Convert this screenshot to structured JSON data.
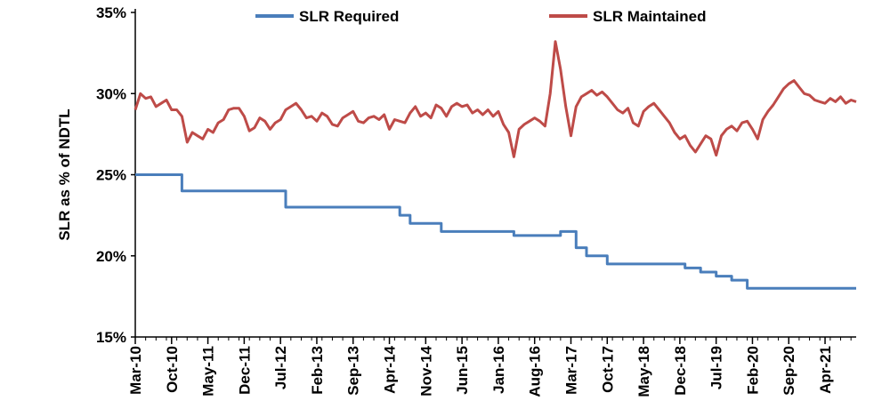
{
  "chart_data": {
    "type": "line",
    "title": "",
    "xlabel": "",
    "ylabel": "SLR as % of NDTL",
    "ylim": [
      15,
      35
    ],
    "yticks": [
      "15%",
      "20%",
      "25%",
      "30%",
      "35%"
    ],
    "x_range": [
      "2010-03",
      "2021-10"
    ],
    "xticks": [
      "Mar-10",
      "Oct-10",
      "May-11",
      "Dec-11",
      "Jul-12",
      "Feb-13",
      "Sep-13",
      "Apr-14",
      "Nov-14",
      "Jun-15",
      "Jan-16",
      "Aug-16",
      "Mar-17",
      "Oct-17",
      "May-18",
      "Dec-18",
      "Jul-19",
      "Feb-20",
      "Sep-20",
      "Apr-21"
    ],
    "legend_position": "top",
    "grid": false,
    "series": [
      {
        "name": "SLR Required",
        "color": "#4a7ebb",
        "points": [
          [
            "2010-03",
            25.0
          ],
          [
            "2010-12",
            25.0
          ],
          [
            "2010-12",
            24.0
          ],
          [
            "2012-08",
            24.0
          ],
          [
            "2012-08",
            23.0
          ],
          [
            "2014-06",
            23.0
          ],
          [
            "2014-06",
            22.5
          ],
          [
            "2014-08",
            22.5
          ],
          [
            "2014-08",
            22.0
          ],
          [
            "2015-02",
            22.0
          ],
          [
            "2015-02",
            21.5
          ],
          [
            "2016-04",
            21.5
          ],
          [
            "2016-04",
            21.25
          ],
          [
            "2017-01",
            21.25
          ],
          [
            "2017-01",
            21.5
          ],
          [
            "2017-04",
            21.5
          ],
          [
            "2017-04",
            20.5
          ],
          [
            "2017-06",
            20.5
          ],
          [
            "2017-06",
            20.0
          ],
          [
            "2017-10",
            20.0
          ],
          [
            "2017-10",
            19.5
          ],
          [
            "2019-01",
            19.5
          ],
          [
            "2019-01",
            19.25
          ],
          [
            "2019-04",
            19.25
          ],
          [
            "2019-04",
            19.0
          ],
          [
            "2019-07",
            19.0
          ],
          [
            "2019-07",
            18.75
          ],
          [
            "2019-10",
            18.75
          ],
          [
            "2019-10",
            18.5
          ],
          [
            "2020-01",
            18.5
          ],
          [
            "2020-01",
            18.0
          ],
          [
            "2021-10",
            18.0
          ]
        ]
      },
      {
        "name": "SLR Maintained",
        "color": "#be4b48",
        "points": [
          [
            "2010-03",
            29.0
          ],
          [
            "2010-04",
            30.0
          ],
          [
            "2010-05",
            29.7
          ],
          [
            "2010-06",
            29.8
          ],
          [
            "2010-07",
            29.2
          ],
          [
            "2010-08",
            29.4
          ],
          [
            "2010-09",
            29.6
          ],
          [
            "2010-10",
            29.0
          ],
          [
            "2010-11",
            29.0
          ],
          [
            "2010-12",
            28.6
          ],
          [
            "2011-01",
            27.0
          ],
          [
            "2011-02",
            27.6
          ],
          [
            "2011-03",
            27.4
          ],
          [
            "2011-04",
            27.2
          ],
          [
            "2011-05",
            27.8
          ],
          [
            "2011-06",
            27.6
          ],
          [
            "2011-07",
            28.2
          ],
          [
            "2011-08",
            28.4
          ],
          [
            "2011-09",
            29.0
          ],
          [
            "2011-10",
            29.1
          ],
          [
            "2011-11",
            29.1
          ],
          [
            "2011-12",
            28.6
          ],
          [
            "2012-01",
            27.7
          ],
          [
            "2012-02",
            27.9
          ],
          [
            "2012-03",
            28.5
          ],
          [
            "2012-04",
            28.3
          ],
          [
            "2012-05",
            27.8
          ],
          [
            "2012-06",
            28.2
          ],
          [
            "2012-07",
            28.4
          ],
          [
            "2012-08",
            29.0
          ],
          [
            "2012-09",
            29.2
          ],
          [
            "2012-10",
            29.4
          ],
          [
            "2012-11",
            29.0
          ],
          [
            "2012-12",
            28.5
          ],
          [
            "2013-01",
            28.6
          ],
          [
            "2013-02",
            28.3
          ],
          [
            "2013-03",
            28.8
          ],
          [
            "2013-04",
            28.6
          ],
          [
            "2013-05",
            28.1
          ],
          [
            "2013-06",
            28.0
          ],
          [
            "2013-07",
            28.5
          ],
          [
            "2013-08",
            28.7
          ],
          [
            "2013-09",
            28.9
          ],
          [
            "2013-10",
            28.3
          ],
          [
            "2013-11",
            28.2
          ],
          [
            "2013-12",
            28.5
          ],
          [
            "2014-01",
            28.6
          ],
          [
            "2014-02",
            28.4
          ],
          [
            "2014-03",
            28.7
          ],
          [
            "2014-04",
            27.8
          ],
          [
            "2014-05",
            28.4
          ],
          [
            "2014-06",
            28.3
          ],
          [
            "2014-07",
            28.2
          ],
          [
            "2014-08",
            28.8
          ],
          [
            "2014-09",
            29.2
          ],
          [
            "2014-10",
            28.6
          ],
          [
            "2014-11",
            28.8
          ],
          [
            "2014-12",
            28.5
          ],
          [
            "2015-01",
            29.3
          ],
          [
            "2015-02",
            29.1
          ],
          [
            "2015-03",
            28.6
          ],
          [
            "2015-04",
            29.2
          ],
          [
            "2015-05",
            29.4
          ],
          [
            "2015-06",
            29.2
          ],
          [
            "2015-07",
            29.3
          ],
          [
            "2015-08",
            28.8
          ],
          [
            "2015-09",
            29.0
          ],
          [
            "2015-10",
            28.7
          ],
          [
            "2015-11",
            29.0
          ],
          [
            "2015-12",
            28.6
          ],
          [
            "2016-01",
            28.9
          ],
          [
            "2016-02",
            28.1
          ],
          [
            "2016-03",
            27.6
          ],
          [
            "2016-04",
            26.1
          ],
          [
            "2016-05",
            27.8
          ],
          [
            "2016-06",
            28.1
          ],
          [
            "2016-07",
            28.3
          ],
          [
            "2016-08",
            28.5
          ],
          [
            "2016-09",
            28.3
          ],
          [
            "2016-10",
            28.0
          ],
          [
            "2016-11",
            30.0
          ],
          [
            "2016-12",
            33.2
          ],
          [
            "2017-01",
            31.5
          ],
          [
            "2017-02",
            29.2
          ],
          [
            "2017-03",
            27.4
          ],
          [
            "2017-04",
            29.2
          ],
          [
            "2017-05",
            29.8
          ],
          [
            "2017-06",
            30.0
          ],
          [
            "2017-07",
            30.2
          ],
          [
            "2017-08",
            29.9
          ],
          [
            "2017-09",
            30.1
          ],
          [
            "2017-10",
            29.8
          ],
          [
            "2017-11",
            29.4
          ],
          [
            "2017-12",
            29.0
          ],
          [
            "2018-01",
            28.8
          ],
          [
            "2018-02",
            29.1
          ],
          [
            "2018-03",
            28.2
          ],
          [
            "2018-04",
            28.0
          ],
          [
            "2018-05",
            28.9
          ],
          [
            "2018-06",
            29.2
          ],
          [
            "2018-07",
            29.4
          ],
          [
            "2018-08",
            29.0
          ],
          [
            "2018-09",
            28.6
          ],
          [
            "2018-10",
            28.2
          ],
          [
            "2018-11",
            27.6
          ],
          [
            "2018-12",
            27.2
          ],
          [
            "2019-01",
            27.4
          ],
          [
            "2019-02",
            26.8
          ],
          [
            "2019-03",
            26.4
          ],
          [
            "2019-04",
            26.9
          ],
          [
            "2019-05",
            27.4
          ],
          [
            "2019-06",
            27.2
          ],
          [
            "2019-07",
            26.2
          ],
          [
            "2019-08",
            27.4
          ],
          [
            "2019-09",
            27.8
          ],
          [
            "2019-10",
            28.0
          ],
          [
            "2019-11",
            27.7
          ],
          [
            "2019-12",
            28.2
          ],
          [
            "2020-01",
            28.3
          ],
          [
            "2020-02",
            27.8
          ],
          [
            "2020-03",
            27.2
          ],
          [
            "2020-04",
            28.4
          ],
          [
            "2020-05",
            28.9
          ],
          [
            "2020-06",
            29.3
          ],
          [
            "2020-07",
            29.8
          ],
          [
            "2020-08",
            30.3
          ],
          [
            "2020-09",
            30.6
          ],
          [
            "2020-10",
            30.8
          ],
          [
            "2020-11",
            30.4
          ],
          [
            "2020-12",
            30.0
          ],
          [
            "2021-01",
            29.9
          ],
          [
            "2021-02",
            29.6
          ],
          [
            "2021-03",
            29.5
          ],
          [
            "2021-04",
            29.4
          ],
          [
            "2021-05",
            29.7
          ],
          [
            "2021-06",
            29.5
          ],
          [
            "2021-07",
            29.8
          ],
          [
            "2021-08",
            29.4
          ],
          [
            "2021-09",
            29.6
          ],
          [
            "2021-10",
            29.5
          ]
        ]
      }
    ]
  }
}
